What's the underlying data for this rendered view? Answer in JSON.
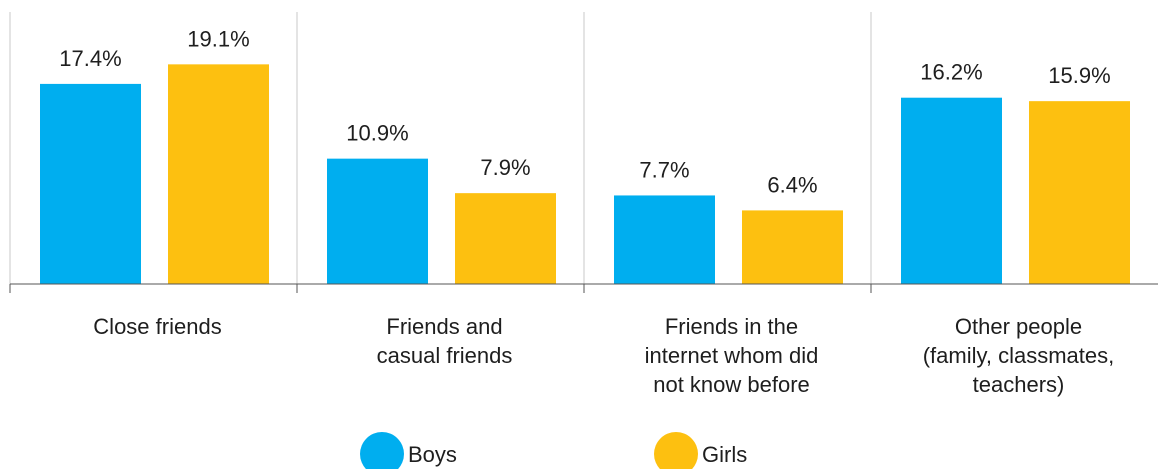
{
  "chart_data": {
    "type": "bar",
    "categories": [
      [
        "Close friends"
      ],
      [
        "Friends and",
        "casual friends"
      ],
      [
        "Friends in the",
        "internet whom did",
        "not know before"
      ],
      [
        "Other people",
        "(family, classmates,",
        "teachers)"
      ]
    ],
    "series": [
      {
        "name": "Boys",
        "color": "#00aeef",
        "values": [
          17.4,
          10.9,
          7.7,
          16.2
        ],
        "labels": [
          "17.4%",
          "10.9%",
          "7.7%",
          "16.2%"
        ]
      },
      {
        "name": "Girls",
        "color": "#fdc010",
        "values": [
          19.1,
          7.9,
          6.4,
          15.9
        ],
        "labels": [
          "19.1%",
          "7.9%",
          "6.4%",
          "15.9%"
        ]
      }
    ],
    "ylim": [
      0,
      25
    ],
    "grid": false,
    "legend_position": "bottom-center"
  }
}
